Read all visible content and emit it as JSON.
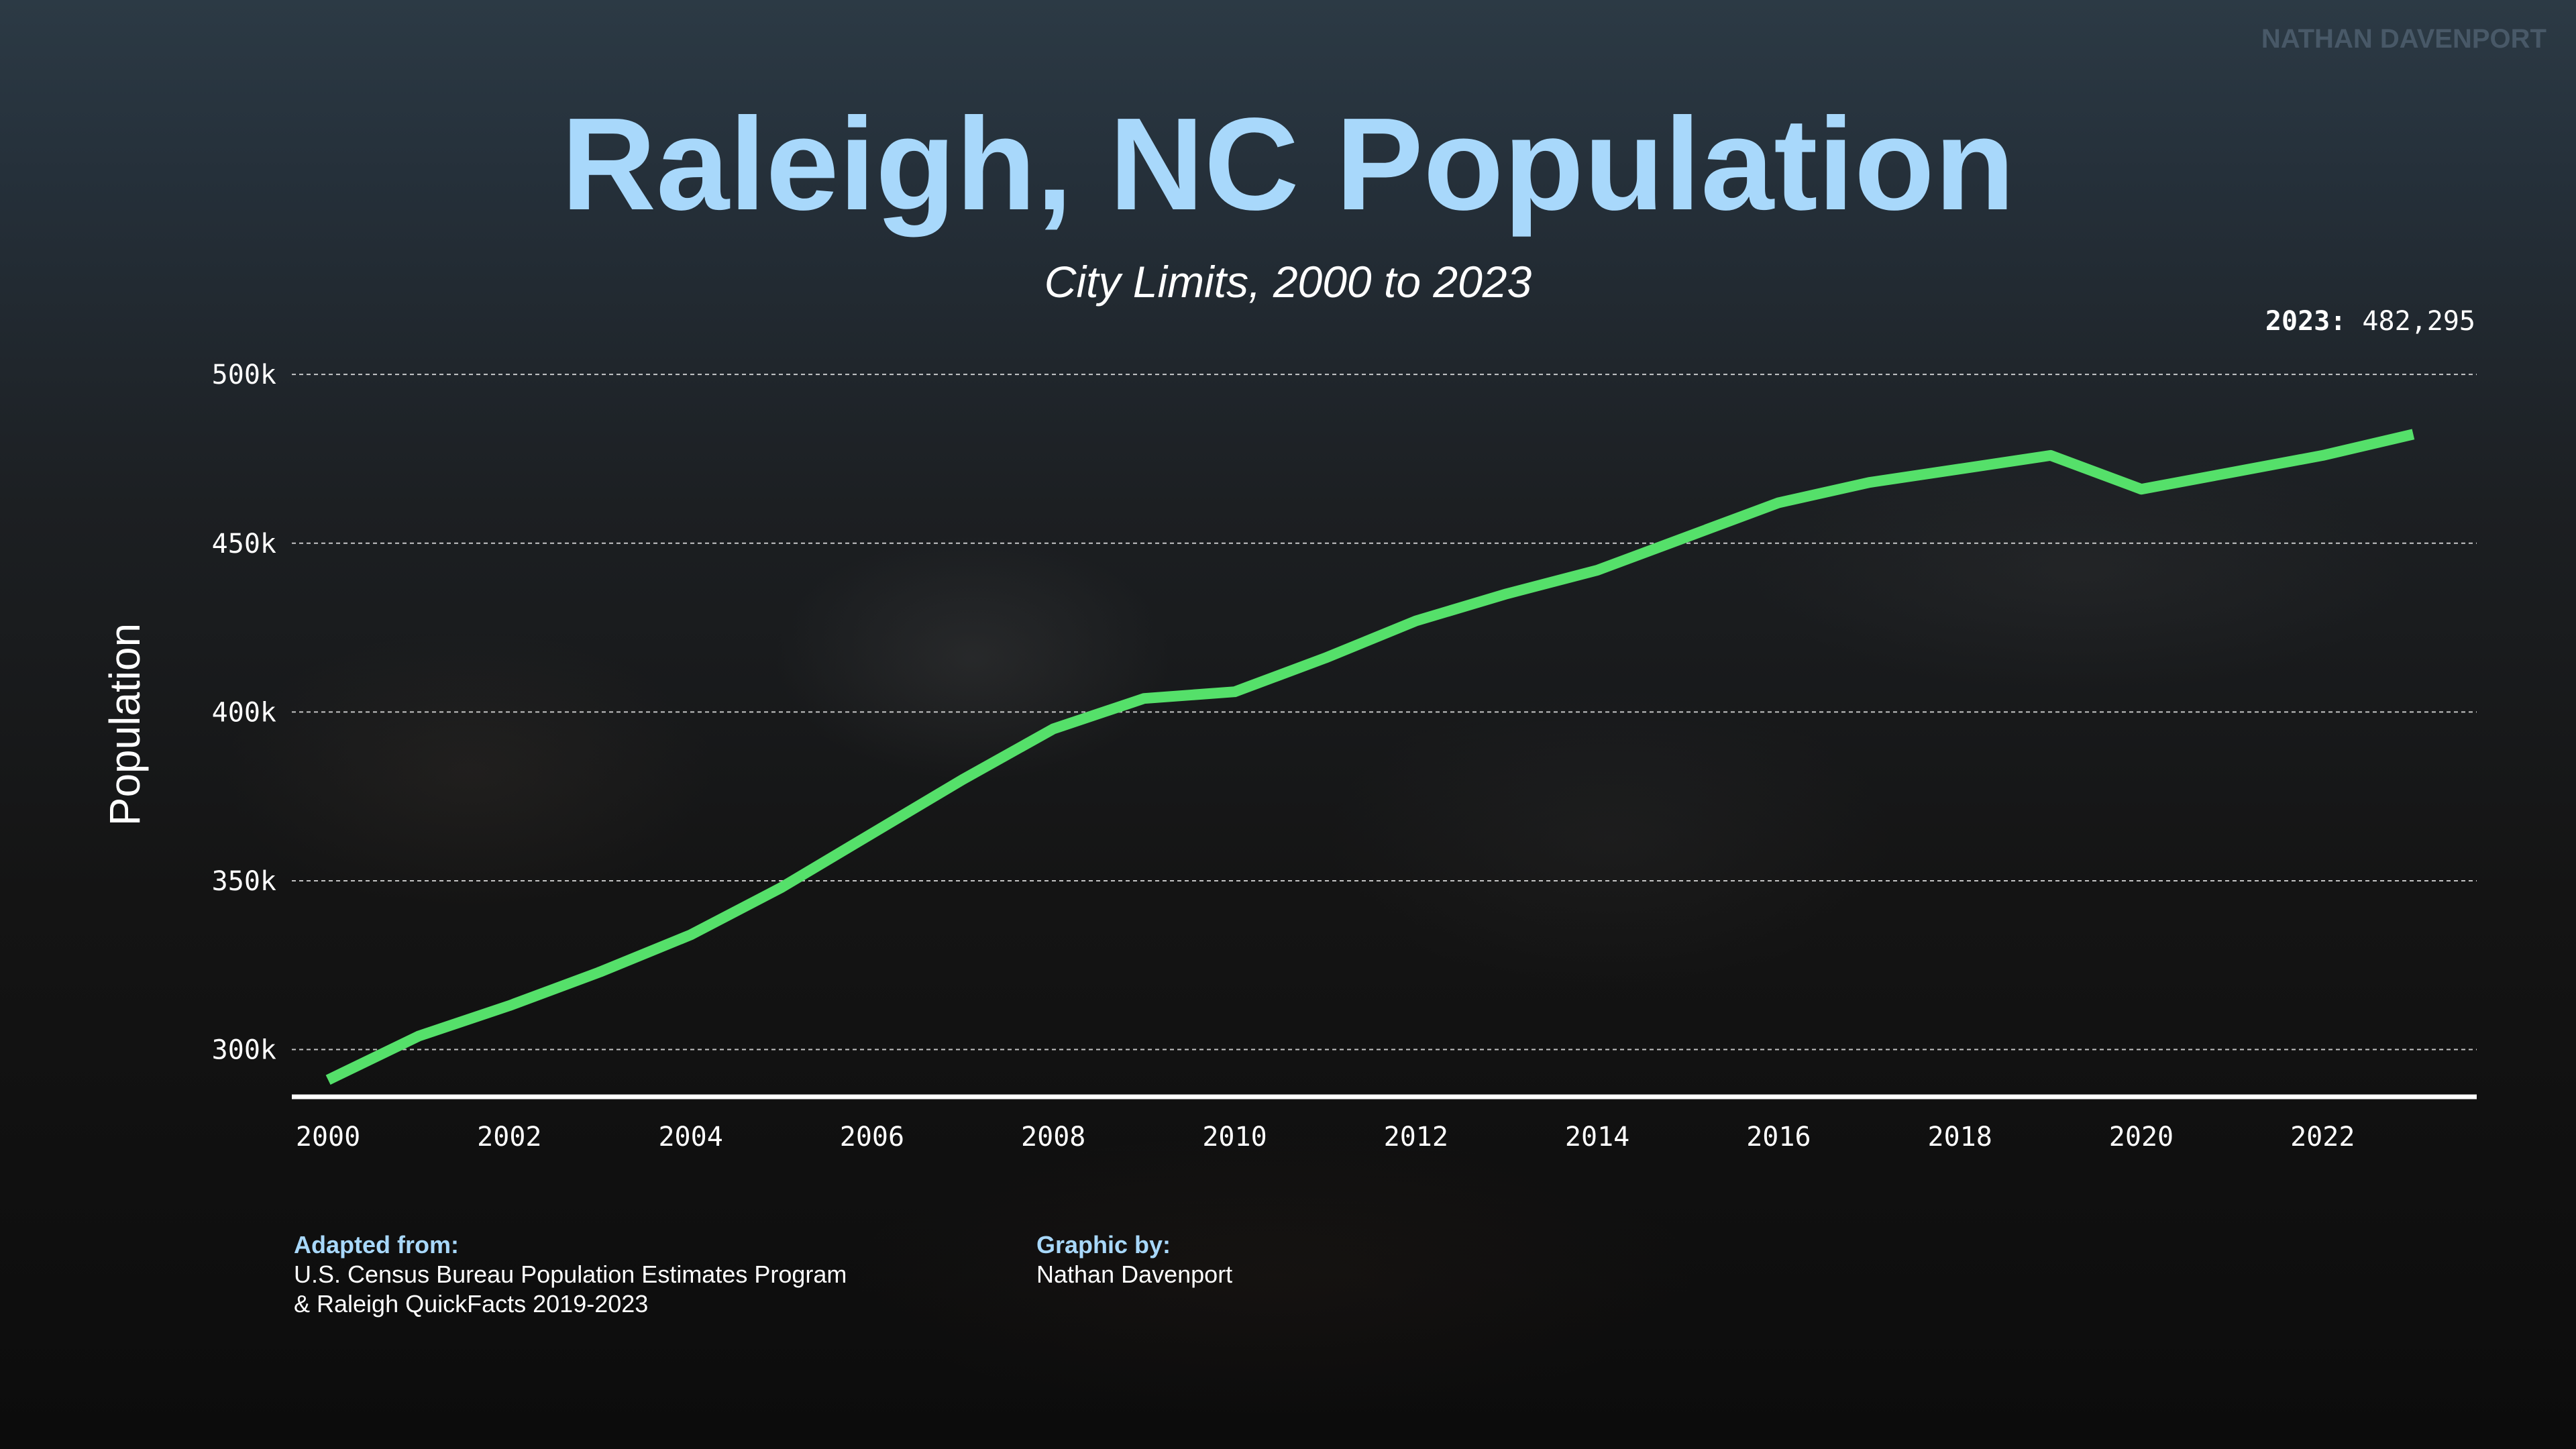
{
  "watermark": "NATHAN DAVENPORT",
  "footer": {
    "source_label": "Adapted from:",
    "source_line1": "U.S. Census Bureau Population Estimates Program",
    "source_line2": "& Raleigh QuickFacts 2019-2023",
    "credit_label": "Graphic by:",
    "credit_name": "Nathan Davenport"
  },
  "colors": {
    "title": "#a8d8fb",
    "line": "#55e06a",
    "axis": "#ffffff"
  },
  "chart_data": {
    "type": "line",
    "title": "Raleigh, NC Population",
    "subtitle": "City Limits, 2000 to 2023",
    "ylabel": "Population",
    "xlabel": "",
    "grid": true,
    "ylim": [
      286000,
      505000
    ],
    "xlim": [
      1999.6,
      2023.7
    ],
    "y_ticks": [
      {
        "value": 300000,
        "label": "300k"
      },
      {
        "value": 350000,
        "label": "350k"
      },
      {
        "value": 400000,
        "label": "400k"
      },
      {
        "value": 450000,
        "label": "450k"
      },
      {
        "value": 500000,
        "label": "500k"
      }
    ],
    "x_ticks": [
      {
        "value": 2000,
        "label": "2000"
      },
      {
        "value": 2002,
        "label": "2002"
      },
      {
        "value": 2004,
        "label": "2004"
      },
      {
        "value": 2006,
        "label": "2006"
      },
      {
        "value": 2008,
        "label": "2008"
      },
      {
        "value": 2010,
        "label": "2010"
      },
      {
        "value": 2012,
        "label": "2012"
      },
      {
        "value": 2014,
        "label": "2014"
      },
      {
        "value": 2016,
        "label": "2016"
      },
      {
        "value": 2018,
        "label": "2018"
      },
      {
        "value": 2020,
        "label": "2020"
      },
      {
        "value": 2022,
        "label": "2022"
      }
    ],
    "series": [
      {
        "x": [
          2000,
          2001,
          2002,
          2003,
          2004,
          2005,
          2006,
          2007,
          2008,
          2009,
          2010,
          2011,
          2012,
          2013,
          2014,
          2015,
          2016,
          2017,
          2018,
          2019,
          2020,
          2021,
          2022,
          2023
        ],
        "values": [
          291000,
          304000,
          313000,
          323000,
          334000,
          348000,
          364000,
          380000,
          395000,
          404000,
          406000,
          416000,
          427000,
          435000,
          442000,
          452000,
          462000,
          468000,
          472000,
          476000,
          466000,
          471000,
          476000,
          482295
        ]
      }
    ],
    "annotation": {
      "label": "2023:",
      "value": "482,295"
    }
  }
}
